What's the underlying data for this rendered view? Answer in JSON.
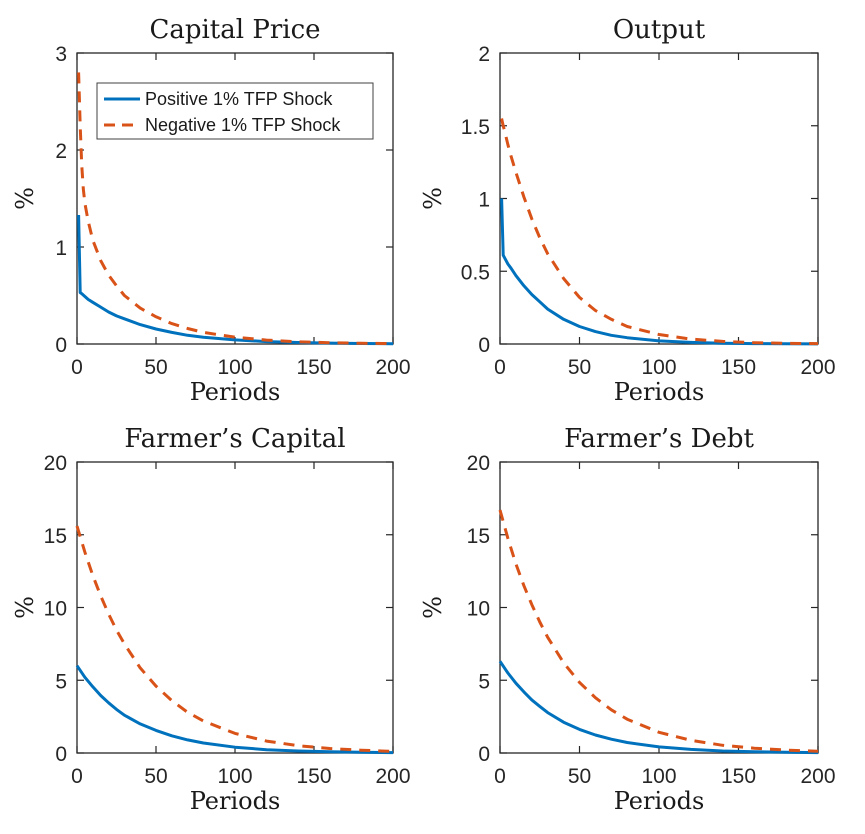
{
  "figure": {
    "background": "#ffffff",
    "axis_color": "#262626",
    "text_color": "#262626",
    "positive_color": "#0072BD",
    "negative_color": "#D95319",
    "legend": {
      "items": [
        {
          "label": "Positive 1% TFP Shock",
          "color": "#0072BD",
          "dash": false
        },
        {
          "label": "Negative 1% TFP Shock",
          "color": "#D95319",
          "dash": true
        }
      ]
    }
  },
  "chart_data": [
    {
      "type": "line",
      "title": "Capital Price",
      "xlabel": "Periods",
      "ylabel": "%",
      "xlim": [
        0,
        200
      ],
      "ylim": [
        0,
        3
      ],
      "xticks": [
        0,
        50,
        100,
        150,
        200
      ],
      "yticks": [
        0,
        1,
        2,
        3
      ],
      "legend_visible": true,
      "series": [
        {
          "name": "Positive 1% TFP Shock",
          "color": "#0072BD",
          "dash": false,
          "x": [
            1,
            2,
            3,
            5,
            7,
            10,
            15,
            20,
            25,
            30,
            40,
            50,
            60,
            70,
            80,
            100,
            120,
            140,
            160,
            180,
            200
          ],
          "y": [
            1.33,
            0.53,
            0.52,
            0.49,
            0.46,
            0.43,
            0.38,
            0.33,
            0.29,
            0.26,
            0.2,
            0.155,
            0.12,
            0.09,
            0.07,
            0.042,
            0.025,
            0.015,
            0.009,
            0.005,
            0.003
          ]
        },
        {
          "name": "Negative 1% TFP Shock",
          "color": "#D95319",
          "dash": true,
          "x": [
            1,
            2,
            3,
            4,
            5,
            7,
            10,
            15,
            20,
            25,
            30,
            40,
            50,
            60,
            70,
            80,
            100,
            120,
            140,
            160,
            180,
            200
          ],
          "y": [
            2.8,
            2.25,
            1.85,
            1.6,
            1.45,
            1.27,
            1.07,
            0.86,
            0.71,
            0.6,
            0.5,
            0.37,
            0.28,
            0.21,
            0.16,
            0.12,
            0.07,
            0.04,
            0.023,
            0.013,
            0.007,
            0.004
          ]
        }
      ]
    },
    {
      "type": "line",
      "title": "Output",
      "xlabel": "Periods",
      "ylabel": "%",
      "xlim": [
        0,
        200
      ],
      "ylim": [
        0,
        2
      ],
      "xticks": [
        0,
        50,
        100,
        150,
        200
      ],
      "yticks": [
        0,
        0.5,
        1,
        1.5,
        2
      ],
      "legend_visible": false,
      "series": [
        {
          "name": "Positive 1% TFP Shock",
          "color": "#0072BD",
          "dash": false,
          "x": [
            1,
            2,
            3,
            5,
            7,
            10,
            15,
            20,
            25,
            30,
            40,
            50,
            60,
            70,
            80,
            100,
            120,
            140,
            160,
            180,
            200
          ],
          "y": [
            1.0,
            0.61,
            0.59,
            0.55,
            0.52,
            0.47,
            0.4,
            0.34,
            0.29,
            0.24,
            0.17,
            0.12,
            0.085,
            0.06,
            0.043,
            0.021,
            0.011,
            0.005,
            0.003,
            0.002,
            0.001
          ]
        },
        {
          "name": "Negative 1% TFP Shock",
          "color": "#D95319",
          "dash": true,
          "x": [
            1,
            2,
            3,
            5,
            7,
            10,
            15,
            20,
            25,
            30,
            40,
            50,
            60,
            70,
            80,
            100,
            120,
            140,
            160,
            180,
            200
          ],
          "y": [
            1.55,
            1.5,
            1.46,
            1.37,
            1.29,
            1.18,
            1.01,
            0.86,
            0.73,
            0.62,
            0.45,
            0.32,
            0.23,
            0.17,
            0.12,
            0.065,
            0.034,
            0.018,
            0.009,
            0.005,
            0.003
          ]
        }
      ]
    },
    {
      "type": "line",
      "title": "Farmer’s Capital",
      "xlabel": "Periods",
      "ylabel": "%",
      "xlim": [
        0,
        200
      ],
      "ylim": [
        0,
        20
      ],
      "xticks": [
        0,
        50,
        100,
        150,
        200
      ],
      "yticks": [
        0,
        5,
        10,
        15,
        20
      ],
      "legend_visible": false,
      "series": [
        {
          "name": "Positive 1% TFP Shock",
          "color": "#0072BD",
          "dash": false,
          "x": [
            0,
            5,
            10,
            15,
            20,
            25,
            30,
            40,
            50,
            60,
            70,
            80,
            100,
            120,
            140,
            160,
            180,
            200
          ],
          "y": [
            6.0,
            5.2,
            4.55,
            3.95,
            3.45,
            3.0,
            2.6,
            2.0,
            1.55,
            1.18,
            0.9,
            0.69,
            0.4,
            0.23,
            0.14,
            0.08,
            0.05,
            0.03
          ]
        },
        {
          "name": "Negative 1% TFP Shock",
          "color": "#D95319",
          "dash": true,
          "x": [
            0,
            5,
            10,
            15,
            20,
            25,
            30,
            40,
            50,
            60,
            70,
            80,
            100,
            120,
            140,
            160,
            180,
            200
          ],
          "y": [
            15.6,
            13.8,
            12.2,
            10.8,
            9.55,
            8.45,
            7.5,
            5.85,
            4.6,
            3.6,
            2.8,
            2.2,
            1.35,
            0.82,
            0.5,
            0.31,
            0.19,
            0.11
          ]
        }
      ]
    },
    {
      "type": "line",
      "title": "Farmer’s Debt",
      "xlabel": "Periods",
      "ylabel": "%",
      "xlim": [
        0,
        200
      ],
      "ylim": [
        0,
        20
      ],
      "xticks": [
        0,
        50,
        100,
        150,
        200
      ],
      "yticks": [
        0,
        5,
        10,
        15,
        20
      ],
      "legend_visible": false,
      "series": [
        {
          "name": "Positive 1% TFP Shock",
          "color": "#0072BD",
          "dash": false,
          "x": [
            0,
            5,
            10,
            15,
            20,
            25,
            30,
            40,
            50,
            60,
            70,
            80,
            100,
            120,
            140,
            160,
            180,
            200
          ],
          "y": [
            6.3,
            5.5,
            4.8,
            4.2,
            3.65,
            3.2,
            2.78,
            2.12,
            1.62,
            1.24,
            0.95,
            0.72,
            0.42,
            0.25,
            0.14,
            0.085,
            0.05,
            0.03
          ]
        },
        {
          "name": "Negative 1% TFP Shock",
          "color": "#D95319",
          "dash": true,
          "x": [
            0,
            5,
            10,
            15,
            20,
            25,
            30,
            40,
            50,
            60,
            70,
            80,
            100,
            120,
            140,
            160,
            180,
            200
          ],
          "y": [
            16.7,
            14.75,
            13.0,
            11.5,
            10.2,
            9.0,
            7.95,
            6.2,
            4.85,
            3.8,
            2.97,
            2.32,
            1.42,
            0.87,
            0.53,
            0.33,
            0.2,
            0.12
          ]
        }
      ]
    }
  ]
}
